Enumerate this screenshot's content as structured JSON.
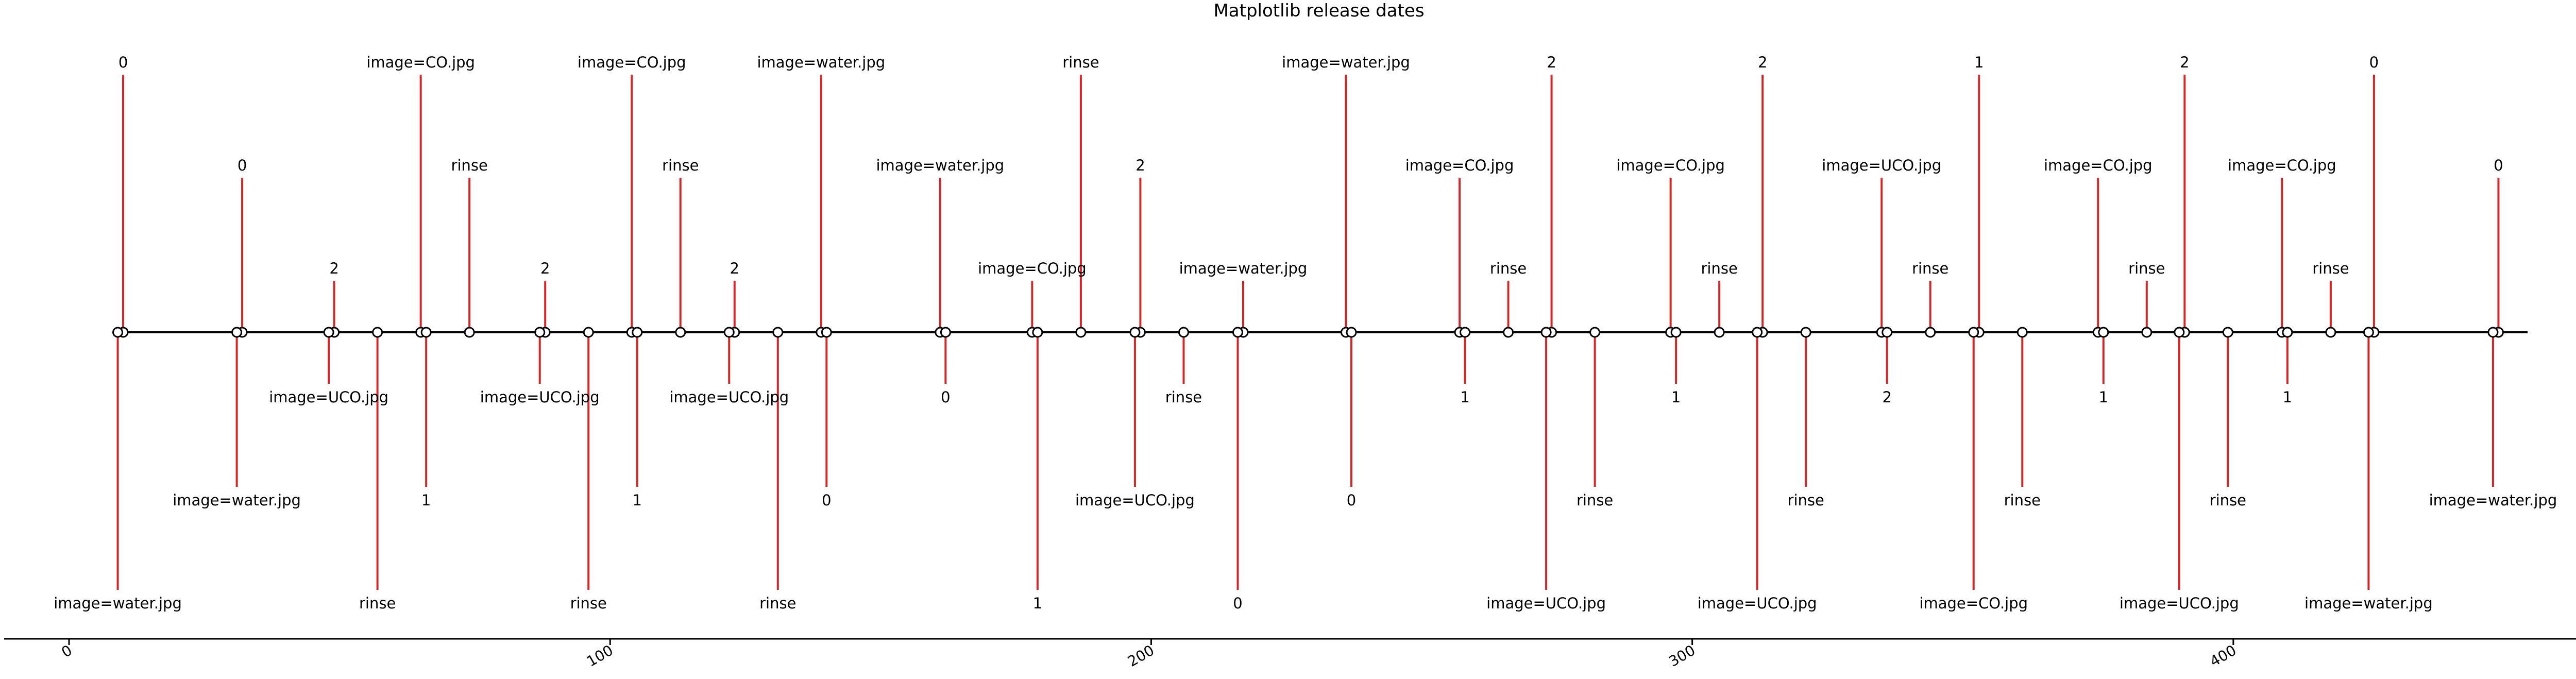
{
  "chart_data": {
    "type": "timeline",
    "title": "Matplotlib release dates",
    "xlim": [
      -12,
      474
    ],
    "ticks": [
      "0",
      "100",
      "200",
      "300",
      "400"
    ],
    "tick_values": [
      0,
      100,
      200,
      300,
      400
    ],
    "events": [
      {
        "x": 10,
        "level": 5,
        "label": "0"
      },
      {
        "x": 9,
        "level": -5,
        "label": "image=water.jpg"
      },
      {
        "x": 32,
        "level": 3,
        "label": "0"
      },
      {
        "x": 31,
        "level": -3,
        "label": "image=water.jpg"
      },
      {
        "x": 49,
        "level": 1,
        "label": "2"
      },
      {
        "x": 48,
        "level": -1,
        "label": "image=UCO.jpg"
      },
      {
        "x": 57,
        "level": -5,
        "label": "rinse"
      },
      {
        "x": 65,
        "level": 5,
        "label": "image=CO.jpg"
      },
      {
        "x": 66,
        "level": -3,
        "label": "1"
      },
      {
        "x": 74,
        "level": 3,
        "label": "rinse"
      },
      {
        "x": 88,
        "level": 1,
        "label": "2"
      },
      {
        "x": 87,
        "level": -1,
        "label": "image=UCO.jpg"
      },
      {
        "x": 96,
        "level": -5,
        "label": "rinse"
      },
      {
        "x": 104,
        "level": 5,
        "label": "image=CO.jpg"
      },
      {
        "x": 105,
        "level": -3,
        "label": "1"
      },
      {
        "x": 113,
        "level": 3,
        "label": "rinse"
      },
      {
        "x": 123,
        "level": 1,
        "label": "2"
      },
      {
        "x": 122,
        "level": -1,
        "label": "image=UCO.jpg"
      },
      {
        "x": 131,
        "level": -5,
        "label": "rinse"
      },
      {
        "x": 139,
        "level": 5,
        "label": "image=water.jpg"
      },
      {
        "x": 140,
        "level": -3,
        "label": "0"
      },
      {
        "x": 161,
        "level": 3,
        "label": "image=water.jpg"
      },
      {
        "x": 162,
        "level": -1,
        "label": "0"
      },
      {
        "x": 178,
        "level": 1,
        "label": "image=CO.jpg"
      },
      {
        "x": 179,
        "level": -5,
        "label": "1"
      },
      {
        "x": 187,
        "level": 5,
        "label": "rinse"
      },
      {
        "x": 198,
        "level": 3,
        "label": "2"
      },
      {
        "x": 197,
        "level": -3,
        "label": "image=UCO.jpg"
      },
      {
        "x": 206,
        "level": -1,
        "label": "rinse"
      },
      {
        "x": 217,
        "level": 1,
        "label": "image=water.jpg"
      },
      {
        "x": 216,
        "level": -5,
        "label": "0"
      },
      {
        "x": 236,
        "level": 5,
        "label": "image=water.jpg"
      },
      {
        "x": 237,
        "level": -3,
        "label": "0"
      },
      {
        "x": 257,
        "level": 3,
        "label": "image=CO.jpg"
      },
      {
        "x": 258,
        "level": -1,
        "label": "1"
      },
      {
        "x": 266,
        "level": 1,
        "label": "rinse"
      },
      {
        "x": 274,
        "level": 5,
        "label": "2"
      },
      {
        "x": 273,
        "level": -5,
        "label": "image=UCO.jpg"
      },
      {
        "x": 282,
        "level": -3,
        "label": "rinse"
      },
      {
        "x": 296,
        "level": 3,
        "label": "image=CO.jpg"
      },
      {
        "x": 297,
        "level": -1,
        "label": "1"
      },
      {
        "x": 305,
        "level": 1,
        "label": "rinse"
      },
      {
        "x": 313,
        "level": 5,
        "label": "2"
      },
      {
        "x": 312,
        "level": -5,
        "label": "image=UCO.jpg"
      },
      {
        "x": 321,
        "level": -3,
        "label": "rinse"
      },
      {
        "x": 335,
        "level": 3,
        "label": "image=UCO.jpg"
      },
      {
        "x": 336,
        "level": -1,
        "label": "2"
      },
      {
        "x": 344,
        "level": 1,
        "label": "rinse"
      },
      {
        "x": 353,
        "level": 5,
        "label": "1"
      },
      {
        "x": 352,
        "level": -5,
        "label": "image=CO.jpg"
      },
      {
        "x": 361,
        "level": -3,
        "label": "rinse"
      },
      {
        "x": 375,
        "level": 3,
        "label": "image=CO.jpg"
      },
      {
        "x": 376,
        "level": -1,
        "label": "1"
      },
      {
        "x": 384,
        "level": 1,
        "label": "rinse"
      },
      {
        "x": 391,
        "level": 5,
        "label": "2"
      },
      {
        "x": 390,
        "level": -5,
        "label": "image=UCO.jpg"
      },
      {
        "x": 399,
        "level": -3,
        "label": "rinse"
      },
      {
        "x": 409,
        "level": 3,
        "label": "image=CO.jpg"
      },
      {
        "x": 410,
        "level": -1,
        "label": "1"
      },
      {
        "x": 418,
        "level": 1,
        "label": "rinse"
      },
      {
        "x": 426,
        "level": 5,
        "label": "0"
      },
      {
        "x": 425,
        "level": -5,
        "label": "image=water.jpg"
      },
      {
        "x": 449,
        "level": 3,
        "label": "0"
      },
      {
        "x": 448,
        "level": -3,
        "label": "image=water.jpg"
      }
    ]
  }
}
